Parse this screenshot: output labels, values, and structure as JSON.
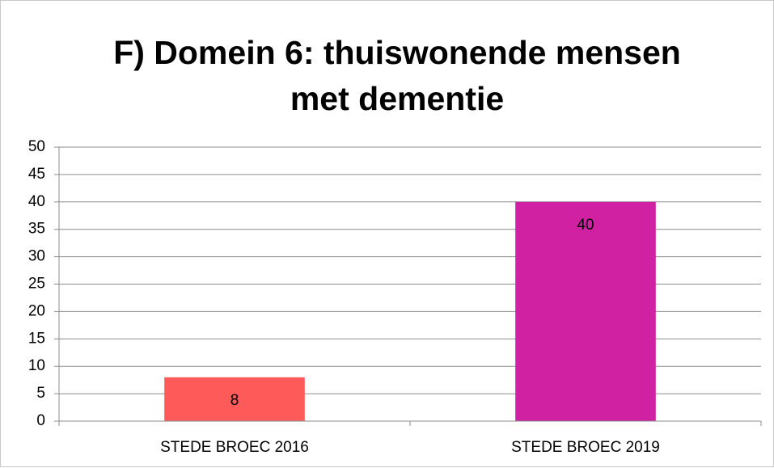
{
  "chart_data": {
    "type": "bar",
    "title": "F) Domein 6: thuiswonende mensen met dementie",
    "categories": [
      "STEDE BROEC 2016",
      "STEDE BROEC 2019"
    ],
    "values": [
      8,
      40
    ],
    "colors": [
      "#ff5a5a",
      "#d021a2"
    ],
    "ylim": [
      0,
      50
    ],
    "yticks": [
      0,
      5,
      10,
      15,
      20,
      25,
      30,
      35,
      40,
      45,
      50
    ],
    "grid": true
  }
}
